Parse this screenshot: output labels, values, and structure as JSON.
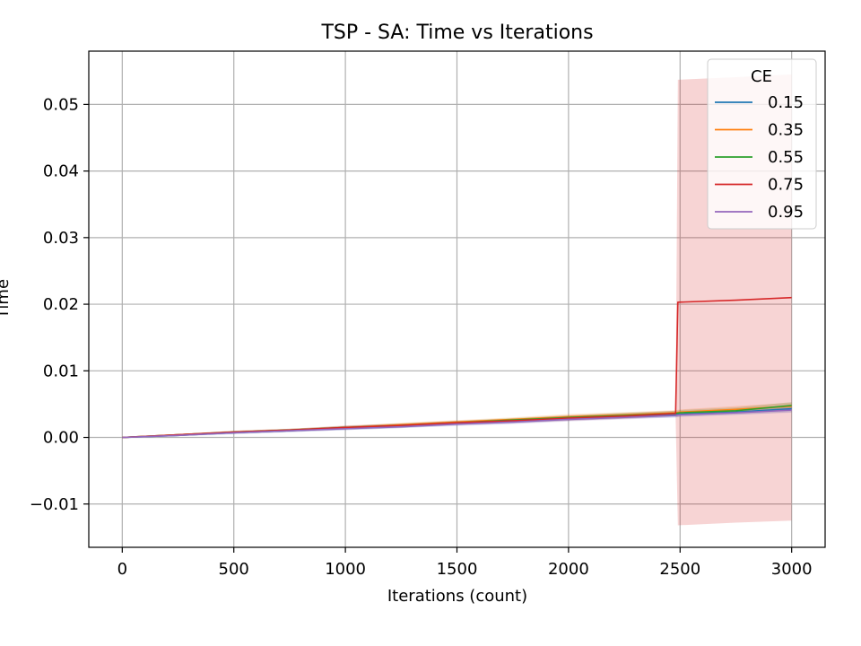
{
  "chart_data": {
    "type": "line",
    "title": "TSP - SA: Time vs Iterations",
    "xlabel": "Iterations (count)",
    "ylabel": "Time",
    "xlim": [
      -150,
      3150
    ],
    "ylim": [
      -0.0165,
      0.058
    ],
    "x_ticks": [
      0,
      500,
      1000,
      1500,
      2000,
      2500,
      3000
    ],
    "x_tick_labels": [
      "0",
      "500",
      "1000",
      "1500",
      "2000",
      "2500",
      "3000"
    ],
    "y_ticks": [
      -0.01,
      0.0,
      0.01,
      0.02,
      0.03,
      0.04,
      0.05
    ],
    "y_tick_labels": [
      "−0.01",
      "0.00",
      "0.01",
      "0.02",
      "0.03",
      "0.04",
      "0.05"
    ],
    "grid": true,
    "legend": {
      "title": "CE",
      "position": "top-right"
    },
    "series": [
      {
        "name": "0.15",
        "color": "#1f77b4",
        "x": [
          0,
          250,
          500,
          750,
          1000,
          1250,
          1500,
          1750,
          2000,
          2250,
          2480,
          2500,
          2750,
          3000
        ],
        "y": [
          0.0,
          0.0003,
          0.0007,
          0.001,
          0.0014,
          0.0017,
          0.0021,
          0.0024,
          0.0028,
          0.0031,
          0.0034,
          0.0035,
          0.0038,
          0.0043
        ],
        "band_lower": [
          0.0,
          0.0002,
          0.0005,
          0.0008,
          0.0011,
          0.0014,
          0.0018,
          0.0021,
          0.0025,
          0.0028,
          0.003,
          0.0031,
          0.0034,
          0.0038
        ],
        "band_upper": [
          0.0,
          0.0004,
          0.0009,
          0.0012,
          0.0017,
          0.002,
          0.0024,
          0.0027,
          0.0031,
          0.0034,
          0.0038,
          0.0039,
          0.0042,
          0.0048
        ]
      },
      {
        "name": "0.35",
        "color": "#ff7f0e",
        "x": [
          0,
          250,
          500,
          750,
          1000,
          1250,
          1500,
          1750,
          2000,
          2250,
          2480,
          2500,
          2750,
          3000
        ],
        "y": [
          0.0,
          0.0004,
          0.0008,
          0.0011,
          0.0015,
          0.0019,
          0.0023,
          0.0027,
          0.0031,
          0.0034,
          0.0037,
          0.0038,
          0.0042,
          0.0047
        ],
        "band_lower": [
          0.0,
          0.0003,
          0.0006,
          0.0009,
          0.0013,
          0.0016,
          0.002,
          0.0024,
          0.0027,
          0.003,
          0.0033,
          0.0034,
          0.0037,
          0.0042
        ],
        "band_upper": [
          0.0,
          0.0005,
          0.001,
          0.0013,
          0.0017,
          0.0022,
          0.0026,
          0.003,
          0.0035,
          0.0038,
          0.0041,
          0.0042,
          0.0047,
          0.0052
        ]
      },
      {
        "name": "0.55",
        "color": "#2ca02c",
        "x": [
          0,
          250,
          500,
          750,
          1000,
          1250,
          1500,
          1750,
          2000,
          2250,
          2480,
          2500,
          2750,
          3000
        ],
        "y": [
          0.0,
          0.0004,
          0.0008,
          0.0011,
          0.0015,
          0.0018,
          0.0022,
          0.0026,
          0.003,
          0.0033,
          0.0036,
          0.0037,
          0.004,
          0.0048
        ],
        "band_lower": [
          0.0,
          0.0003,
          0.0006,
          0.0009,
          0.0013,
          0.0016,
          0.0019,
          0.0023,
          0.0026,
          0.0029,
          0.0032,
          0.0033,
          0.0036,
          0.0043
        ],
        "band_upper": [
          0.0,
          0.0005,
          0.001,
          0.0013,
          0.0017,
          0.0021,
          0.0025,
          0.0029,
          0.0033,
          0.0037,
          0.004,
          0.0041,
          0.0045,
          0.0053
        ]
      },
      {
        "name": "0.75",
        "color": "#d62728",
        "x": [
          0,
          250,
          500,
          750,
          1000,
          1250,
          1500,
          1750,
          2000,
          2250,
          2480,
          2490,
          2750,
          3000
        ],
        "y": [
          0.0,
          0.0004,
          0.0008,
          0.0011,
          0.0015,
          0.0018,
          0.0022,
          0.0025,
          0.0029,
          0.0032,
          0.0036,
          0.0203,
          0.0206,
          0.021
        ],
        "band_lower": [
          0.0,
          0.0003,
          0.0006,
          0.0009,
          0.0012,
          0.0015,
          0.0019,
          0.0022,
          0.0025,
          0.0028,
          0.0032,
          -0.0132,
          -0.0128,
          -0.0125
        ],
        "band_upper": [
          0.0,
          0.0005,
          0.001,
          0.0013,
          0.0018,
          0.0021,
          0.0025,
          0.0028,
          0.0033,
          0.0036,
          0.004,
          0.0537,
          0.0541,
          0.0545
        ]
      },
      {
        "name": "0.95",
        "color": "#9467bd",
        "x": [
          0,
          250,
          500,
          750,
          1000,
          1250,
          1500,
          1750,
          2000,
          2250,
          2480,
          2500,
          2750,
          3000
        ],
        "y": [
          0.0,
          0.0003,
          0.0007,
          0.001,
          0.0013,
          0.0016,
          0.002,
          0.0023,
          0.0027,
          0.003,
          0.0033,
          0.0034,
          0.0037,
          0.0041
        ],
        "band_lower": [
          0.0,
          0.0002,
          0.0005,
          0.0008,
          0.0011,
          0.0014,
          0.0017,
          0.002,
          0.0024,
          0.0027,
          0.003,
          0.0031,
          0.0034,
          0.0037
        ],
        "band_upper": [
          0.0,
          0.0004,
          0.0009,
          0.0012,
          0.0015,
          0.0018,
          0.0023,
          0.0026,
          0.003,
          0.0033,
          0.0036,
          0.0037,
          0.004,
          0.0045
        ]
      }
    ]
  }
}
